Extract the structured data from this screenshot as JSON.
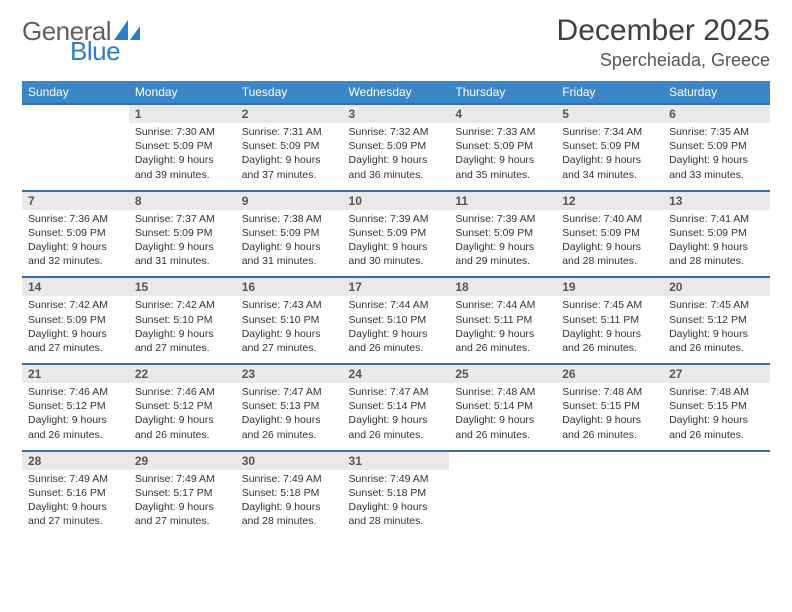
{
  "brand": {
    "part1": "General",
    "part2": "Blue",
    "logo_color": "#2a7ec4"
  },
  "title": {
    "month": "December 2025",
    "location": "Spercheiada, Greece"
  },
  "colors": {
    "header_bg": "#3a86c8",
    "row_rule": "#3a6da0",
    "daynum_bg": "#e9e9e9",
    "text": "#333333"
  },
  "weekdays": [
    "Sunday",
    "Monday",
    "Tuesday",
    "Wednesday",
    "Thursday",
    "Friday",
    "Saturday"
  ],
  "weeks": [
    [
      null,
      {
        "n": "1",
        "sr": "7:30 AM",
        "ss": "5:09 PM",
        "dl": "9 hours and 39 minutes."
      },
      {
        "n": "2",
        "sr": "7:31 AM",
        "ss": "5:09 PM",
        "dl": "9 hours and 37 minutes."
      },
      {
        "n": "3",
        "sr": "7:32 AM",
        "ss": "5:09 PM",
        "dl": "9 hours and 36 minutes."
      },
      {
        "n": "4",
        "sr": "7:33 AM",
        "ss": "5:09 PM",
        "dl": "9 hours and 35 minutes."
      },
      {
        "n": "5",
        "sr": "7:34 AM",
        "ss": "5:09 PM",
        "dl": "9 hours and 34 minutes."
      },
      {
        "n": "6",
        "sr": "7:35 AM",
        "ss": "5:09 PM",
        "dl": "9 hours and 33 minutes."
      }
    ],
    [
      {
        "n": "7",
        "sr": "7:36 AM",
        "ss": "5:09 PM",
        "dl": "9 hours and 32 minutes."
      },
      {
        "n": "8",
        "sr": "7:37 AM",
        "ss": "5:09 PM",
        "dl": "9 hours and 31 minutes."
      },
      {
        "n": "9",
        "sr": "7:38 AM",
        "ss": "5:09 PM",
        "dl": "9 hours and 31 minutes."
      },
      {
        "n": "10",
        "sr": "7:39 AM",
        "ss": "5:09 PM",
        "dl": "9 hours and 30 minutes."
      },
      {
        "n": "11",
        "sr": "7:39 AM",
        "ss": "5:09 PM",
        "dl": "9 hours and 29 minutes."
      },
      {
        "n": "12",
        "sr": "7:40 AM",
        "ss": "5:09 PM",
        "dl": "9 hours and 28 minutes."
      },
      {
        "n": "13",
        "sr": "7:41 AM",
        "ss": "5:09 PM",
        "dl": "9 hours and 28 minutes."
      }
    ],
    [
      {
        "n": "14",
        "sr": "7:42 AM",
        "ss": "5:09 PM",
        "dl": "9 hours and 27 minutes."
      },
      {
        "n": "15",
        "sr": "7:42 AM",
        "ss": "5:10 PM",
        "dl": "9 hours and 27 minutes."
      },
      {
        "n": "16",
        "sr": "7:43 AM",
        "ss": "5:10 PM",
        "dl": "9 hours and 27 minutes."
      },
      {
        "n": "17",
        "sr": "7:44 AM",
        "ss": "5:10 PM",
        "dl": "9 hours and 26 minutes."
      },
      {
        "n": "18",
        "sr": "7:44 AM",
        "ss": "5:11 PM",
        "dl": "9 hours and 26 minutes."
      },
      {
        "n": "19",
        "sr": "7:45 AM",
        "ss": "5:11 PM",
        "dl": "9 hours and 26 minutes."
      },
      {
        "n": "20",
        "sr": "7:45 AM",
        "ss": "5:12 PM",
        "dl": "9 hours and 26 minutes."
      }
    ],
    [
      {
        "n": "21",
        "sr": "7:46 AM",
        "ss": "5:12 PM",
        "dl": "9 hours and 26 minutes."
      },
      {
        "n": "22",
        "sr": "7:46 AM",
        "ss": "5:12 PM",
        "dl": "9 hours and 26 minutes."
      },
      {
        "n": "23",
        "sr": "7:47 AM",
        "ss": "5:13 PM",
        "dl": "9 hours and 26 minutes."
      },
      {
        "n": "24",
        "sr": "7:47 AM",
        "ss": "5:14 PM",
        "dl": "9 hours and 26 minutes."
      },
      {
        "n": "25",
        "sr": "7:48 AM",
        "ss": "5:14 PM",
        "dl": "9 hours and 26 minutes."
      },
      {
        "n": "26",
        "sr": "7:48 AM",
        "ss": "5:15 PM",
        "dl": "9 hours and 26 minutes."
      },
      {
        "n": "27",
        "sr": "7:48 AM",
        "ss": "5:15 PM",
        "dl": "9 hours and 26 minutes."
      }
    ],
    [
      {
        "n": "28",
        "sr": "7:49 AM",
        "ss": "5:16 PM",
        "dl": "9 hours and 27 minutes."
      },
      {
        "n": "29",
        "sr": "7:49 AM",
        "ss": "5:17 PM",
        "dl": "9 hours and 27 minutes."
      },
      {
        "n": "30",
        "sr": "7:49 AM",
        "ss": "5:18 PM",
        "dl": "9 hours and 28 minutes."
      },
      {
        "n": "31",
        "sr": "7:49 AM",
        "ss": "5:18 PM",
        "dl": "9 hours and 28 minutes."
      },
      null,
      null,
      null
    ]
  ],
  "labels": {
    "sunrise": "Sunrise: ",
    "sunset": "Sunset: ",
    "daylight": "Daylight: "
  }
}
